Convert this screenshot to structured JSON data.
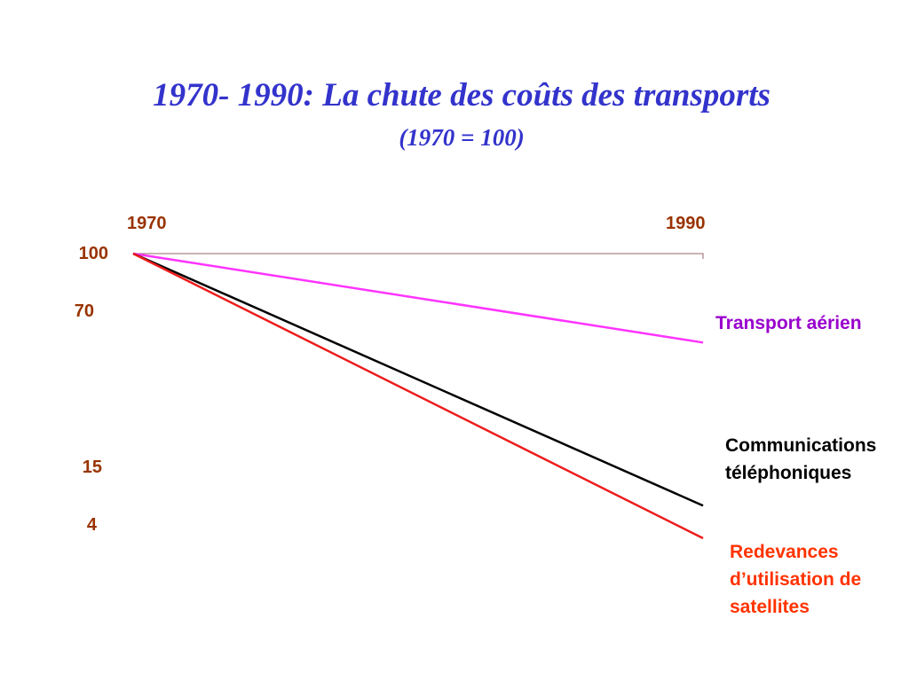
{
  "title": "1970- 1990: La chute des coûts des transports",
  "subtitle": "(1970 = 100)",
  "chart_data": {
    "type": "line",
    "x": [
      1970,
      1990
    ],
    "xticks": [
      "1970",
      "1990"
    ],
    "yticks": [
      "100",
      "70",
      "15",
      "4"
    ],
    "ylim": [
      4,
      100
    ],
    "series": [
      {
        "name": "Transport aérien",
        "values": [
          100,
          70
        ],
        "color": "#ff33ff",
        "label_color": "#9900cc"
      },
      {
        "name": "Communications téléphoniques",
        "values": [
          100,
          15
        ],
        "color": "#000000",
        "label_color": "#000000"
      },
      {
        "name": "Redevances d’utilisation de satellites",
        "values": [
          100,
          4
        ],
        "color": "#ee1c1c",
        "label_color": "#ff3300"
      }
    ],
    "baseline_color": "#996666",
    "grid": false,
    "legend": "right"
  }
}
